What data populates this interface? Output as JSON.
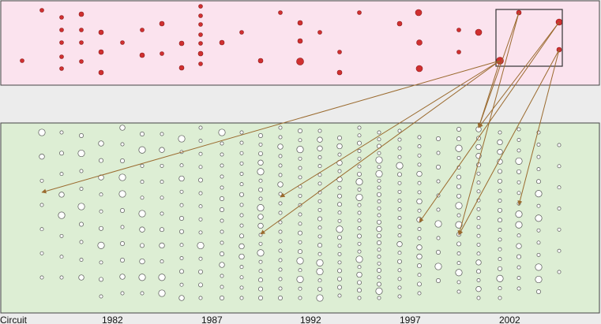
{
  "colors": {
    "background": "#ececec",
    "top_panel_fill": "#fbe3ee",
    "bottom_panel_fill": "#ddeed4",
    "panel_border": "#444444",
    "top_node_fill": "#d03030",
    "top_node_stroke": "#8a1818",
    "bottom_node_fill": "#ffffff",
    "bottom_node_stroke": "#555555",
    "arrow_color": "#9a6a2e",
    "axis_text": "#111111"
  },
  "axis": {
    "first_label": "Circuit",
    "year_labels": [
      "1982",
      "1987",
      "1992",
      "1997",
      "2002"
    ]
  }
}
